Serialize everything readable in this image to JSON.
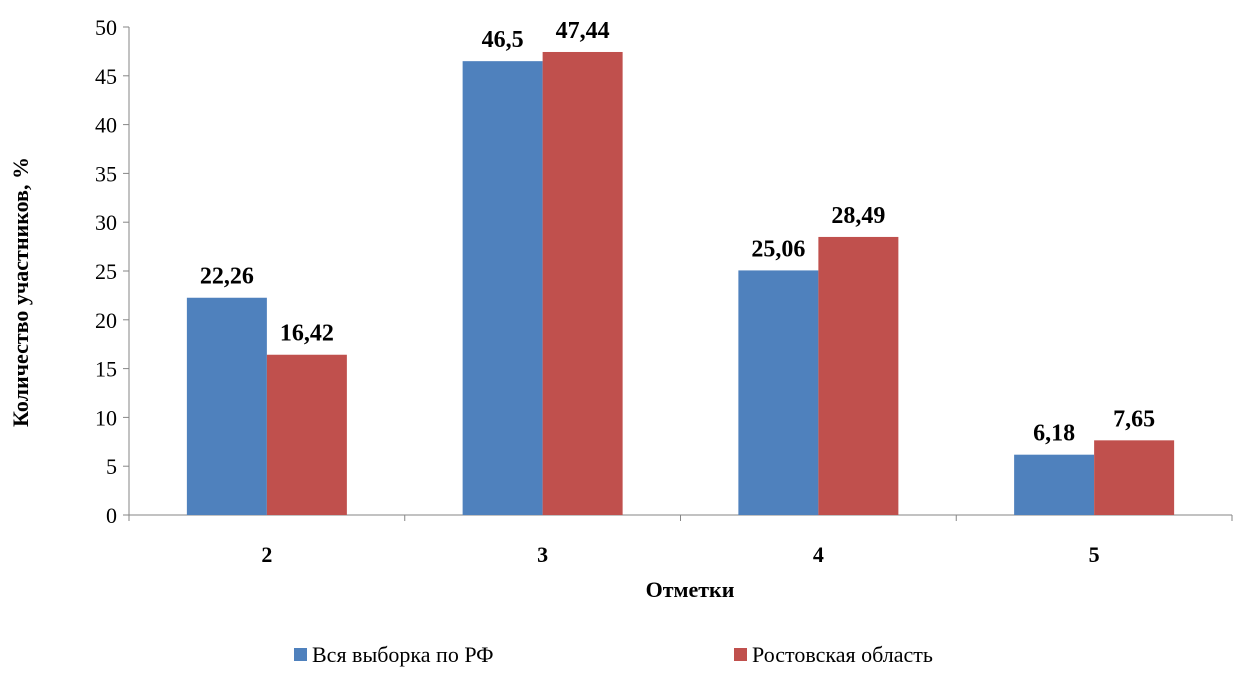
{
  "chart_data": {
    "type": "bar",
    "categories": [
      "2",
      "3",
      "4",
      "5"
    ],
    "series": [
      {
        "name": "Вся выборка по РФ",
        "values": [
          22.26,
          46.5,
          25.06,
          6.18
        ],
        "labels": [
          "22,26",
          "46,5",
          "25,06",
          "6,18"
        ],
        "color": "#4F81BD"
      },
      {
        "name": "Ростовская область",
        "values": [
          16.42,
          47.44,
          28.49,
          7.65
        ],
        "labels": [
          "16,42",
          "47,44",
          "28,49",
          "7,65"
        ],
        "color": "#C0504D"
      }
    ],
    "xlabel": "Отметки",
    "ylabel": "Количество участников, %",
    "ylim": [
      0,
      50
    ],
    "yticks": [
      "0",
      "5",
      "10",
      "15",
      "20",
      "25",
      "30",
      "35",
      "40",
      "45",
      "50"
    ],
    "grid": false,
    "legend_position": "bottom"
  }
}
